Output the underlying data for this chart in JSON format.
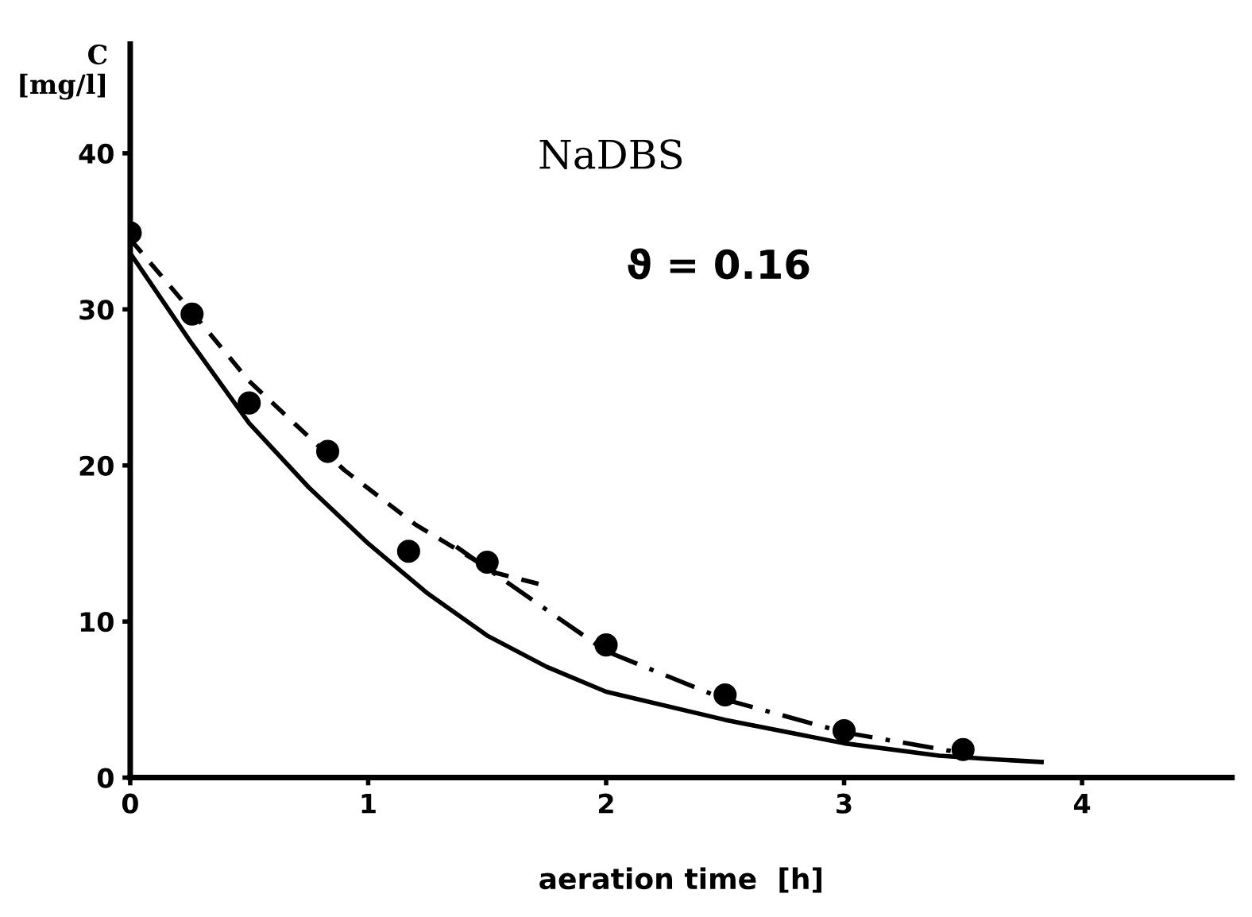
{
  "chart_data": {
    "type": "scatter",
    "xlabel": "aeration time  [h]",
    "ylabel": "C\n[mg/l]",
    "annotations": [
      "NaDBS",
      "ϑ = 0.16"
    ],
    "xlim": [
      0,
      4.63
    ],
    "ylim": [
      0,
      47
    ],
    "xticks": [
      0,
      1,
      2,
      3,
      4
    ],
    "yticks": [
      0,
      10,
      20,
      30,
      40
    ],
    "grid": false,
    "legend": false,
    "series": [
      {
        "color": "#000000",
        "marker": "circle",
        "x": [
          0,
          0.26,
          0.5,
          0.83,
          1.17,
          1.5,
          2.0,
          2.5,
          3.0,
          3.5
        ],
        "values": [
          34.9,
          29.7,
          24.0,
          20.9,
          14.5,
          13.8,
          8.5,
          5.3,
          3.0,
          1.8
        ]
      },
      {
        "type": "line",
        "color": "#000000",
        "line_style": "solid",
        "x": [
          0,
          0.25,
          0.5,
          0.75,
          1.0,
          1.25,
          1.5,
          1.75,
          2.0,
          2.5,
          3.0,
          3.4,
          3.6,
          3.83
        ],
        "values": [
          33.6,
          28.0,
          22.7,
          18.6,
          15.0,
          11.8,
          9.1,
          7.1,
          5.5,
          3.7,
          2.2,
          1.4,
          1.2,
          1.0
        ]
      },
      {
        "type": "line",
        "color": "#000000",
        "line_style": "dashed",
        "x": [
          0,
          0.25,
          0.5,
          0.9,
          1.2,
          1.54,
          1.72
        ],
        "values": [
          34.5,
          30.0,
          25.4,
          19.7,
          16.2,
          13.1,
          12.4
        ]
      },
      {
        "type": "line",
        "color": "#000000",
        "line_style": "dashdot",
        "x": [
          1.37,
          1.5,
          2.0,
          2.5,
          3.0,
          3.45
        ],
        "values": [
          14.8,
          13.4,
          8.1,
          5.0,
          2.9,
          1.7
        ]
      }
    ]
  }
}
